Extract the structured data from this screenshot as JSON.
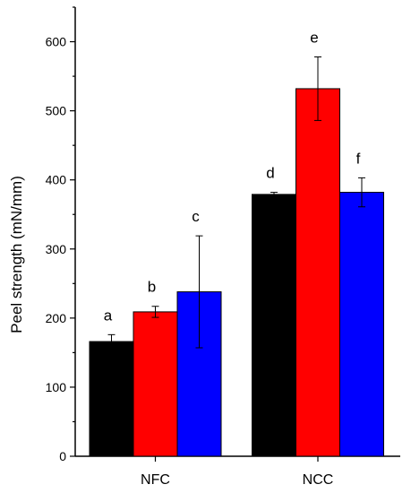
{
  "chart_data": {
    "type": "bar",
    "title": "",
    "xlabel": "",
    "ylabel": "Peel strength (mN/mm)",
    "categories": [
      "NFC",
      "NCC"
    ],
    "ylim": [
      0,
      650
    ],
    "yticks": [
      0,
      100,
      200,
      300,
      400,
      500,
      600
    ],
    "grid": false,
    "legend": "none",
    "series": [
      {
        "color": "#000000",
        "values": [
          166,
          379
        ],
        "errors": [
          10,
          3
        ],
        "labels": [
          "a",
          "d"
        ]
      },
      {
        "color": "#ff0000",
        "values": [
          209,
          532
        ],
        "errors": [
          8,
          46
        ],
        "labels": [
          "b",
          "e"
        ]
      },
      {
        "color": "#0000ff",
        "values": [
          238,
          382
        ],
        "errors": [
          81,
          21
        ],
        "labels": [
          "c",
          "f"
        ]
      }
    ]
  }
}
